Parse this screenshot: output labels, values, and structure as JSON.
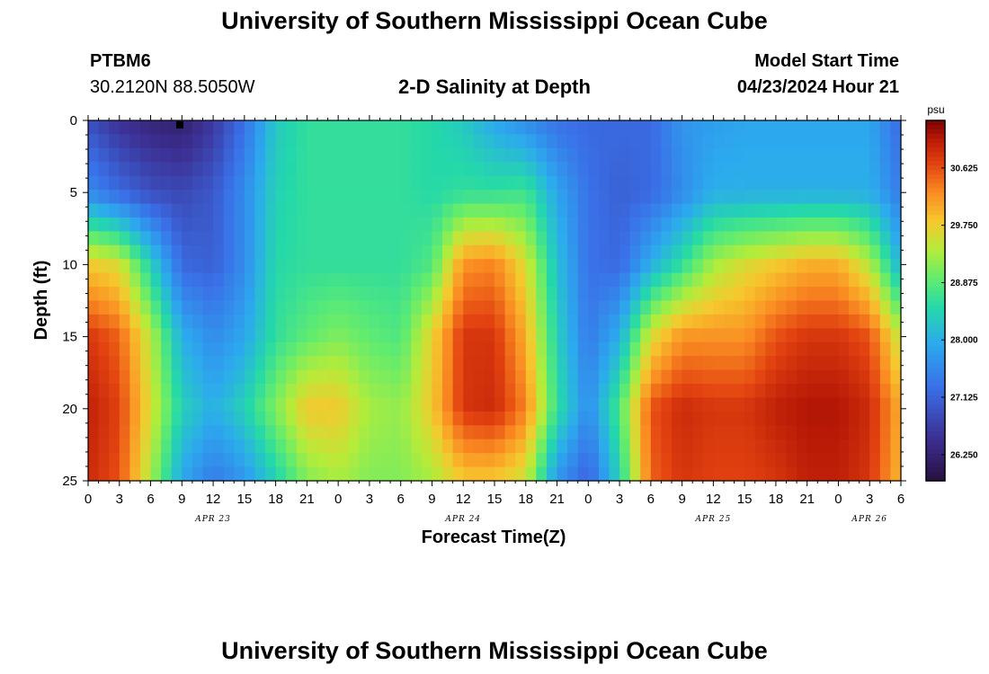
{
  "header": {
    "title": "University of Southern Mississippi Ocean Cube",
    "station_id": "PTBM6",
    "coordinates": "30.2120N  88.5050W",
    "model_start_label": "Model Start Time",
    "model_start_value": "04/23/2024 Hour 21"
  },
  "footer": {
    "title": "University of Southern Mississippi Ocean Cube"
  },
  "chart_data": {
    "type": "heatmap",
    "title": "2-D Salinity at Depth",
    "xlabel": "Forecast Time(Z)",
    "ylabel": "Depth (ft)",
    "colorbar_unit": "psu",
    "colorbar_ticks": [
      "30.625",
      "29.750",
      "28.875",
      "28.000",
      "27.125",
      "26.250"
    ],
    "colorbar_tick_values": [
      30.625,
      29.75,
      28.875,
      28.0,
      27.125,
      26.25
    ],
    "zlim": [
      25.85,
      31.35
    ],
    "x_tick_labels": [
      "0",
      "3",
      "6",
      "9",
      "12",
      "15",
      "18",
      "21",
      "0",
      "3",
      "6",
      "9",
      "12",
      "15",
      "18",
      "21",
      "0",
      "3",
      "6",
      "9",
      "12",
      "15",
      "18",
      "21",
      "0",
      "3",
      "6"
    ],
    "date_labels": [
      {
        "label": "APR 23",
        "hour": 12
      },
      {
        "label": "APR 24",
        "hour": 36
      },
      {
        "label": "APR 25",
        "hour": 60
      },
      {
        "label": "APR 26",
        "hour": 75
      }
    ],
    "xlim": [
      0,
      78
    ],
    "y_tick_labels": [
      "0",
      "5",
      "10",
      "15",
      "20",
      "25"
    ],
    "ylim": [
      0,
      25
    ],
    "depths_ft": [
      0,
      5,
      10,
      15,
      20,
      25
    ],
    "hours": [
      0,
      3,
      6,
      9,
      12,
      15,
      18,
      21,
      24,
      27,
      30,
      33,
      36,
      39,
      42,
      45,
      48,
      51,
      54,
      57,
      60,
      63,
      66,
      69,
      72,
      75,
      78
    ],
    "values": [
      [
        26.9,
        26.5,
        26.3,
        26.2,
        26.6,
        27.3,
        28.3,
        28.6,
        28.6,
        28.6,
        28.6,
        28.5,
        28.3,
        27.9,
        27.6,
        27.3,
        27.2,
        27.2,
        27.2,
        27.7,
        27.8,
        27.9,
        27.9,
        27.9,
        27.9,
        27.9,
        27.2
      ],
      [
        27.6,
        27.2,
        26.9,
        26.8,
        27.0,
        27.6,
        28.4,
        28.6,
        28.6,
        28.6,
        28.6,
        28.5,
        28.6,
        28.6,
        28.7,
        27.9,
        27.3,
        27.1,
        27.2,
        27.6,
        28.0,
        28.0,
        28.0,
        28.0,
        28.0,
        28.0,
        27.4
      ],
      [
        29.8,
        29.6,
        28.4,
        27.2,
        27.1,
        27.6,
        28.5,
        28.6,
        28.6,
        28.6,
        28.6,
        28.8,
        30.2,
        30.3,
        29.6,
        28.2,
        27.3,
        27.2,
        28.0,
        28.6,
        29.3,
        29.6,
        29.8,
        30.0,
        30.0,
        29.4,
        28.0
      ],
      [
        30.8,
        30.5,
        29.4,
        28.0,
        27.6,
        27.9,
        28.6,
        28.9,
        29.1,
        28.9,
        28.8,
        29.7,
        30.8,
        30.8,
        30.0,
        28.4,
        27.4,
        28.0,
        29.6,
        30.2,
        30.2,
        30.2,
        30.6,
        30.8,
        30.8,
        30.6,
        29.4
      ],
      [
        31.0,
        30.7,
        29.6,
        28.4,
        28.0,
        28.4,
        29.1,
        29.8,
        29.8,
        29.3,
        29.2,
        29.8,
        30.8,
        30.9,
        30.3,
        28.6,
        27.6,
        28.8,
        30.6,
        30.9,
        30.8,
        30.8,
        31.0,
        31.1,
        31.1,
        30.9,
        30.0
      ],
      [
        30.9,
        30.6,
        29.3,
        27.9,
        27.4,
        27.7,
        28.4,
        29.1,
        29.3,
        29.1,
        29.1,
        29.3,
        29.8,
        29.8,
        29.5,
        27.7,
        27.1,
        28.4,
        30.5,
        30.8,
        30.7,
        30.7,
        30.8,
        31.0,
        31.0,
        30.8,
        29.9
      ]
    ]
  }
}
